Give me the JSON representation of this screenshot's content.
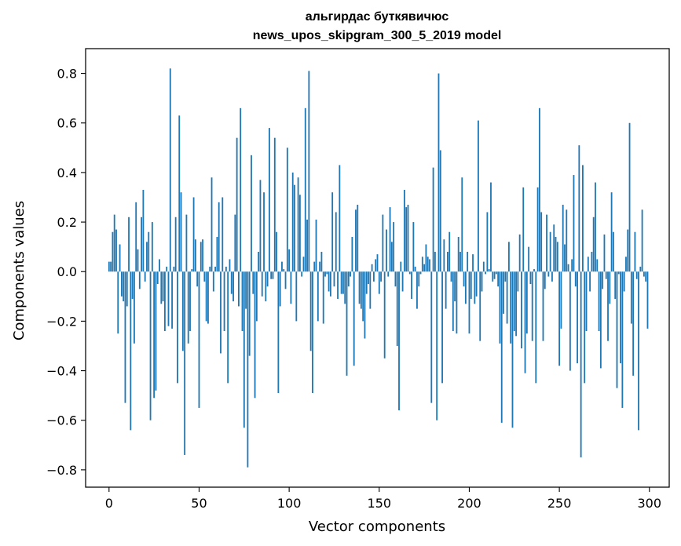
{
  "chart_data": {
    "type": "bar",
    "title": [
      "альгирдас буткявичюс",
      "news_upos_skipgram_300_5_2019 model"
    ],
    "xlabel": "Vector components",
    "ylabel": "Components values",
    "xlim": [
      -13,
      311
    ],
    "ylim": [
      -0.87,
      0.9
    ],
    "xticks": [
      0,
      50,
      100,
      150,
      200,
      250,
      300
    ],
    "xtick_labels": [
      "0",
      "50",
      "100",
      "150",
      "200",
      "250",
      "300"
    ],
    "yticks": [
      -0.8,
      -0.6,
      -0.4,
      -0.2,
      0.0,
      0.2,
      0.4,
      0.6,
      0.8
    ],
    "ytick_labels": [
      "−0.8",
      "−0.6",
      "−0.4",
      "−0.2",
      "0.0",
      "0.2",
      "0.4",
      "0.6",
      "0.8"
    ],
    "grid": false,
    "bar_color": "#1f77b4",
    "values": [
      0.04,
      0.04,
      0.16,
      0.23,
      0.17,
      -0.25,
      0.11,
      -0.1,
      -0.12,
      -0.53,
      -0.14,
      0.22,
      -0.64,
      -0.11,
      -0.29,
      0.28,
      0.09,
      -0.07,
      0.22,
      0.33,
      -0.04,
      0.12,
      0.16,
      -0.6,
      0.2,
      -0.51,
      -0.48,
      -0.05,
      0.05,
      -0.13,
      -0.12,
      -0.24,
      0.02,
      -0.22,
      0.82,
      -0.23,
      0.02,
      0.22,
      -0.45,
      0.63,
      0.32,
      -0.32,
      -0.74,
      0.23,
      -0.29,
      -0.24,
      0.01,
      0.3,
      0.13,
      -0.06,
      -0.55,
      0.12,
      0.13,
      -0.04,
      -0.2,
      -0.21,
      0.02,
      0.38,
      -0.08,
      0.02,
      0.14,
      0.28,
      -0.33,
      0.3,
      -0.24,
      0.02,
      -0.45,
      0.05,
      -0.09,
      -0.12,
      0.23,
      0.54,
      -0.14,
      0.66,
      -0.24,
      -0.63,
      -0.15,
      -0.79,
      -0.34,
      0.47,
      -0.09,
      -0.51,
      -0.2,
      0.08,
      0.37,
      -0.1,
      0.32,
      -0.12,
      -0.06,
      0.58,
      -0.03,
      -0.03,
      0.54,
      0.16,
      -0.49,
      -0.14,
      0.04,
      0.01,
      -0.07,
      0.5,
      0.09,
      -0.13,
      0.4,
      0.35,
      -0.2,
      0.38,
      0.31,
      -0.02,
      0.06,
      0.66,
      0.21,
      0.81,
      -0.32,
      -0.49,
      0.04,
      0.21,
      -0.2,
      0.04,
      0.08,
      -0.21,
      -0.02,
      -0.01,
      -0.08,
      -0.1,
      0.32,
      -0.06,
      0.24,
      -0.11,
      0.43,
      -0.09,
      -0.09,
      -0.13,
      -0.42,
      -0.06,
      -0.02,
      0.14,
      -0.38,
      0.25,
      0.27,
      -0.13,
      -0.15,
      -0.2,
      -0.27,
      -0.09,
      -0.05,
      -0.15,
      0.03,
      -0.04,
      0.05,
      0.07,
      -0.09,
      -0.04,
      0.23,
      -0.35,
      0.17,
      -0.02,
      0.26,
      0.12,
      0.2,
      -0.06,
      -0.3,
      -0.56,
      0.04,
      -0.08,
      0.33,
      0.26,
      0.27,
      -0.01,
      -0.11,
      0.2,
      0.02,
      -0.15,
      -0.06,
      -0.01,
      0.06,
      0.03,
      0.11,
      0.06,
      0.05,
      -0.53,
      0.42,
      0.08,
      -0.6,
      0.8,
      0.49,
      -0.45,
      0.13,
      -0.15,
      0.08,
      0.16,
      -0.04,
      -0.24,
      -0.12,
      -0.25,
      0.14,
      0.08,
      0.38,
      -0.06,
      -0.13,
      0.08,
      -0.25,
      -0.11,
      0.07,
      -0.13,
      -0.1,
      0.61,
      -0.28,
      -0.08,
      0.04,
      -0.01,
      0.24,
      0.01,
      0.36,
      -0.04,
      -0.03,
      -0.01,
      -0.06,
      -0.29,
      -0.61,
      -0.17,
      -0.04,
      -0.21,
      0.12,
      -0.29,
      -0.63,
      -0.24,
      -0.26,
      -0.08,
      0.15,
      -0.31,
      0.34,
      -0.41,
      -0.25,
      0.1,
      -0.05,
      -0.28,
      0.01,
      -0.45,
      0.34,
      0.66,
      0.24,
      -0.28,
      -0.07,
      0.23,
      -0.02,
      0.16,
      -0.04,
      0.19,
      0.14,
      0.12,
      -0.38,
      -0.23,
      0.27,
      0.11,
      0.25,
      0.03,
      -0.4,
      0.05,
      0.39,
      -0.06,
      -0.37,
      0.51,
      -0.75,
      0.43,
      -0.45,
      -0.24,
      0.06,
      -0.08,
      0.08,
      0.22,
      0.36,
      0.05,
      -0.24,
      -0.39,
      -0.07,
      0.15,
      -0.03,
      -0.28,
      -0.13,
      0.32,
      0.16,
      -0.11,
      -0.47,
      -0.01,
      -0.37,
      -0.55,
      -0.08,
      0.06,
      0.17,
      0.6,
      -0.21,
      -0.42,
      0.16,
      -0.03,
      -0.64,
      0.02,
      0.25,
      -0.02,
      -0.04,
      -0.23
    ]
  }
}
